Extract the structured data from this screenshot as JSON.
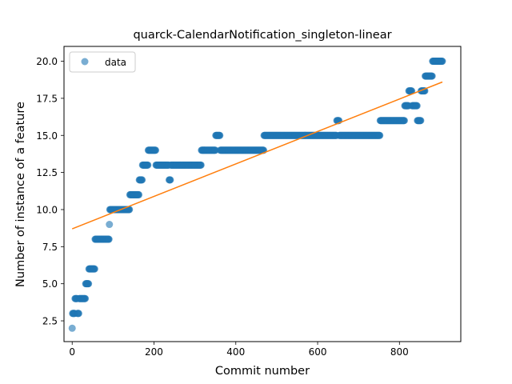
{
  "chart_data": {
    "type": "scatter",
    "title": "quarck-CalendarNotification_singleton-linear",
    "xlabel": "Commit number",
    "ylabel": "Number of instance of a feature",
    "xlim": [
      -20,
      950
    ],
    "ylim": [
      1.1,
      21.0
    ],
    "xticks": [
      {
        "value": 0,
        "label": "0"
      },
      {
        "value": 200,
        "label": "200"
      },
      {
        "value": 400,
        "label": "400"
      },
      {
        "value": 600,
        "label": "600"
      },
      {
        "value": 800,
        "label": "800"
      }
    ],
    "yticks": [
      {
        "value": 2.5,
        "label": "2.5"
      },
      {
        "value": 5.0,
        "label": "5.0"
      },
      {
        "value": 7.5,
        "label": "7.5"
      },
      {
        "value": 10.0,
        "label": "10.0"
      },
      {
        "value": 12.5,
        "label": "12.5"
      },
      {
        "value": 15.0,
        "label": "15.0"
      },
      {
        "value": 17.5,
        "label": "17.5"
      },
      {
        "value": 20.0,
        "label": "20.0"
      }
    ],
    "grid": false,
    "legend": {
      "position": "top-left",
      "entries": [
        "data"
      ]
    },
    "colors": {
      "data": "#1f77b4",
      "fit": "#ff7f0e"
    },
    "series": [
      {
        "name": "data",
        "kind": "scatter",
        "segments": [
          {
            "x": [
              0,
              0
            ],
            "y": 2
          },
          {
            "x": [
              1,
              6
            ],
            "y": 3
          },
          {
            "x": [
              7,
              12
            ],
            "y": 4
          },
          {
            "x": [
              13,
              16
            ],
            "y": 3
          },
          {
            "x": [
              17,
              32
            ],
            "y": 4
          },
          {
            "x": [
              33,
              40
            ],
            "y": 5
          },
          {
            "x": [
              41,
              55
            ],
            "y": 6
          },
          {
            "x": [
              56,
              90
            ],
            "y": 8
          },
          {
            "x": [
              91,
              91
            ],
            "y": 9
          },
          {
            "x": [
              92,
              140
            ],
            "y": 10
          },
          {
            "x": [
              141,
              163
            ],
            "y": 11
          },
          {
            "x": [
              164,
              171
            ],
            "y": 12
          },
          {
            "x": [
              172,
              185
            ],
            "y": 13
          },
          {
            "x": [
              186,
              204
            ],
            "y": 14
          },
          {
            "x": [
              205,
              236
            ],
            "y": 13
          },
          {
            "x": [
              237,
              240
            ],
            "y": 12
          },
          {
            "x": [
              241,
              315
            ],
            "y": 13
          },
          {
            "x": [
              316,
              350
            ],
            "y": 14
          },
          {
            "x": [
              351,
              361
            ],
            "y": 15
          },
          {
            "x": [
              362,
              468
            ],
            "y": 14
          },
          {
            "x": [
              469,
              646
            ],
            "y": 15
          },
          {
            "x": [
              647,
              652
            ],
            "y": 16
          },
          {
            "x": [
              653,
              752
            ],
            "y": 15
          },
          {
            "x": [
              753,
              812
            ],
            "y": 16
          },
          {
            "x": [
              813,
              822
            ],
            "y": 17
          },
          {
            "x": [
              823,
              830
            ],
            "y": 18
          },
          {
            "x": [
              831,
              843
            ],
            "y": 17
          },
          {
            "x": [
              844,
              852
            ],
            "y": 16
          },
          {
            "x": [
              853,
              862
            ],
            "y": 18
          },
          {
            "x": [
              863,
              880
            ],
            "y": 19
          },
          {
            "x": [
              881,
              905
            ],
            "y": 20
          }
        ]
      },
      {
        "name": "",
        "kind": "line",
        "x": [
          0,
          905
        ],
        "y": [
          8.7,
          18.6
        ]
      }
    ]
  }
}
